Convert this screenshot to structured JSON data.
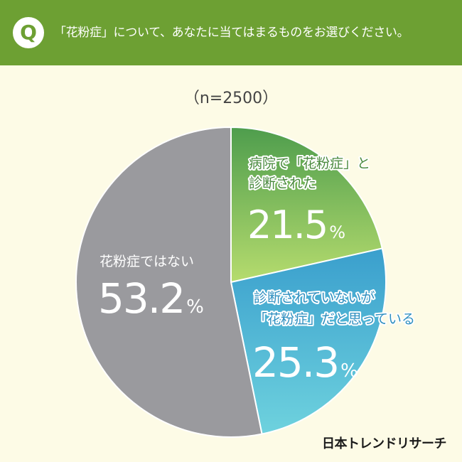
{
  "header": {
    "badge": "Q",
    "question": "「花粉症」について、あなたに当てはまるものをお選びください。"
  },
  "sample_size": "（n=2500）",
  "logo": "日本トレンドリサーチ",
  "colors": {
    "header": "#6da033",
    "background": "#fdfbe6",
    "slice1_top": "#4e9d4d",
    "slice1_bottom": "#b6dc6e",
    "slice2_top": "#3a9fcd",
    "slice2_bottom": "#6ed2de",
    "slice3": "#9a9a9e",
    "label1": "#4a8a3e",
    "label2": "#2e8fc0"
  },
  "chart_data": {
    "type": "pie",
    "title": "",
    "unit": "%",
    "slices": [
      {
        "label_lines": [
          "病院で「花粉症」と",
          "診断された"
        ],
        "value": 21.5,
        "value_text": "21.5"
      },
      {
        "label_lines": [
          "診断されていないが",
          "「花粉症」だと思っている"
        ],
        "value": 25.3,
        "value_text": "25.3"
      },
      {
        "label_lines": [
          "花粉症ではない"
        ],
        "value": 53.2,
        "value_text": "53.2"
      }
    ]
  }
}
